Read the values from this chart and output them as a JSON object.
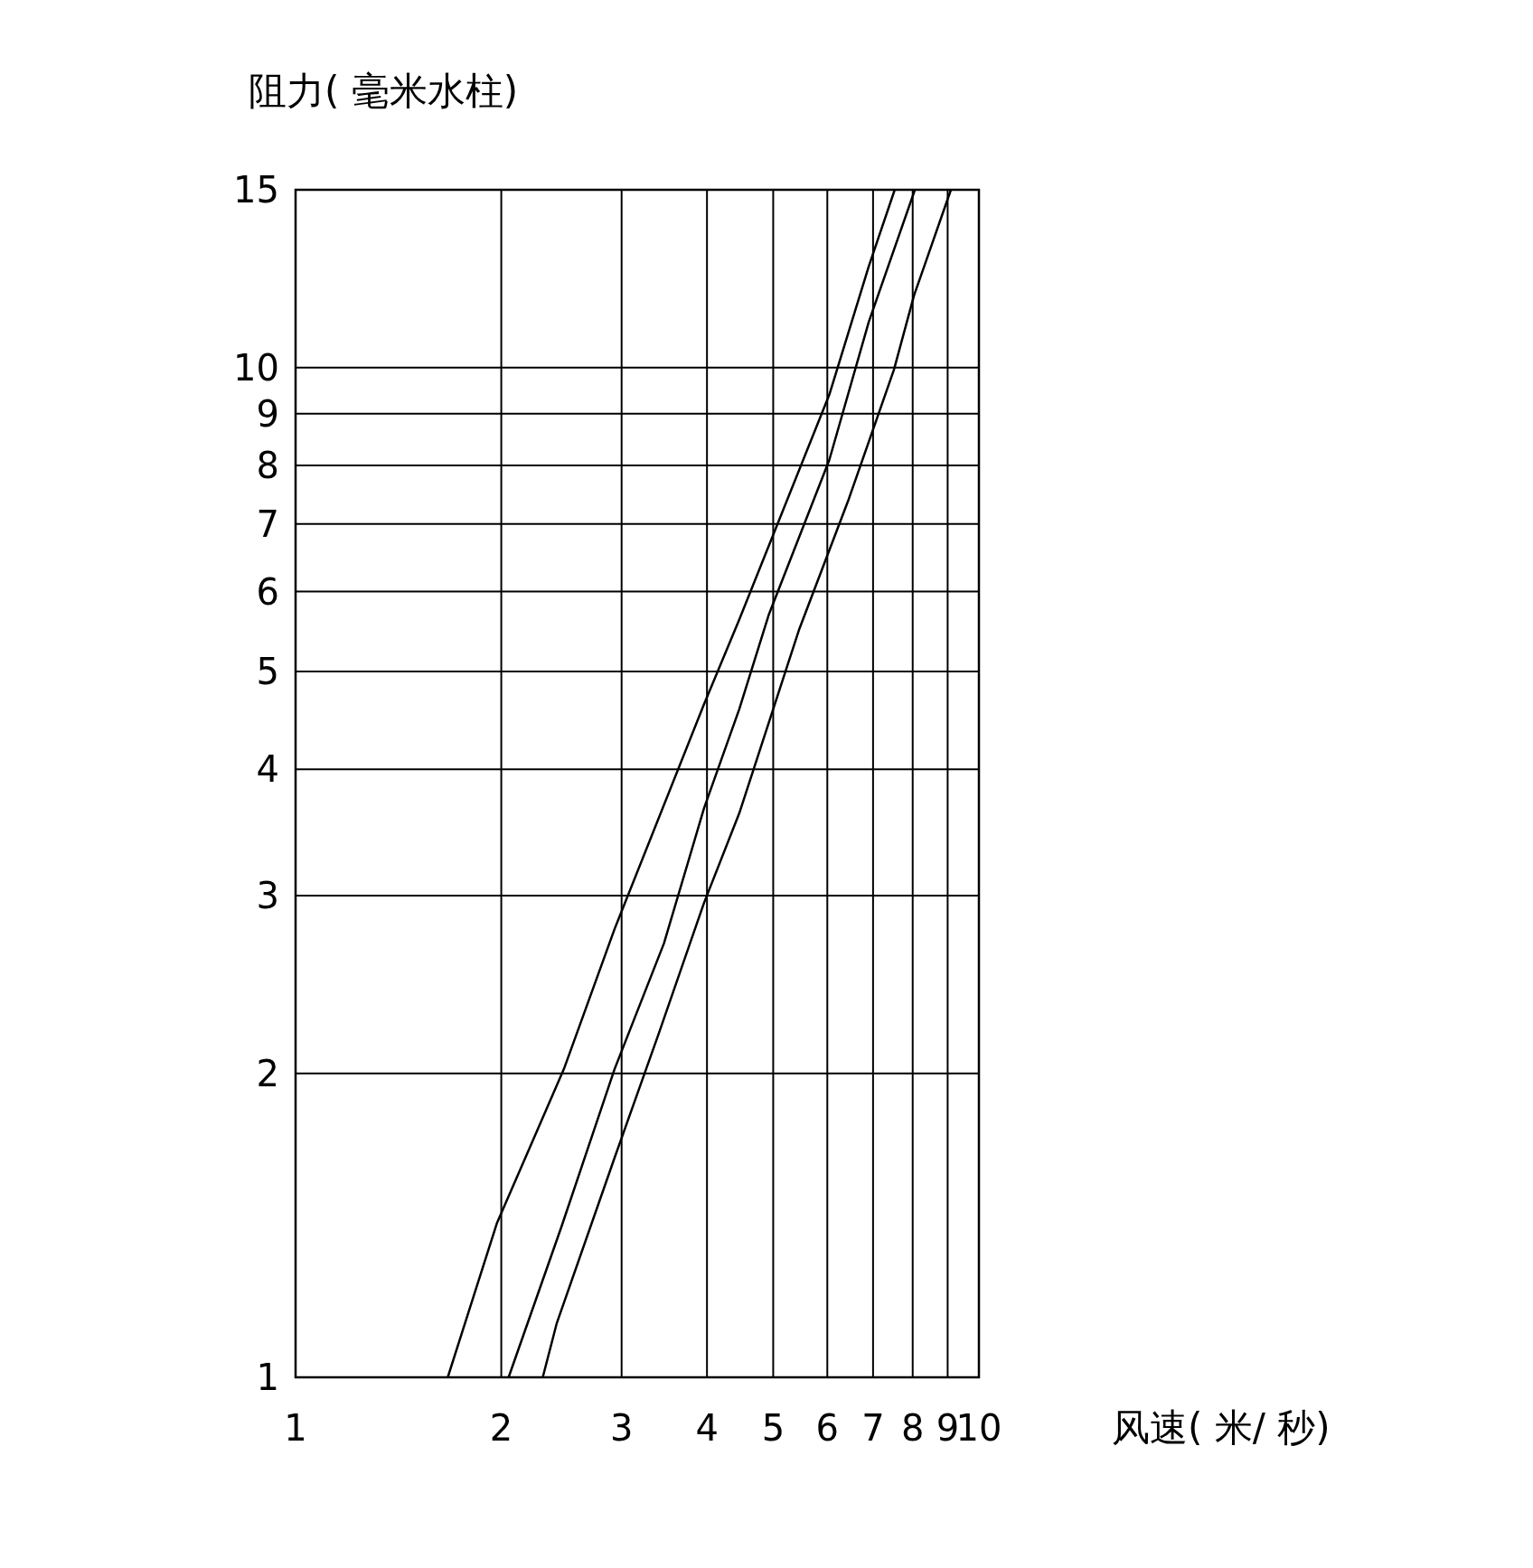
{
  "chart_data": {
    "type": "line",
    "xlabel": "风速( 米/ 秒)",
    "ylabel": "阻力( 毫米水柱)",
    "log": "xy",
    "grid": true,
    "xlim": [
      1,
      10
    ],
    "ylim": [
      1,
      15
    ],
    "xticks": [
      1,
      2,
      3,
      4,
      5,
      6,
      7,
      8,
      9,
      10
    ],
    "yticks": [
      1,
      2,
      3,
      4,
      5,
      6,
      7,
      8,
      9,
      10,
      15
    ],
    "series": [
      {
        "color": "#000000",
        "x": [
          1.67,
          1.97,
          2.47,
          2.93,
          3.96,
          4.46,
          6.04,
          6.9,
          7.53
        ],
        "values": [
          1,
          1.42,
          2.02,
          2.78,
          4.64,
          5.63,
          9.4,
          12.6,
          15
        ]
      },
      {
        "color": "#000000",
        "x": [
          2.05,
          2.45,
          2.93,
          3.46,
          3.96,
          4.46,
          4.93,
          6.04,
          6.9,
          8.06
        ],
        "values": [
          1,
          1.41,
          2.02,
          2.69,
          3.66,
          4.59,
          5.7,
          8.1,
          11.1,
          15
        ]
      },
      {
        "color": "#000000",
        "x": [
          2.3,
          2.41,
          2.93,
          3.4,
          3.96,
          4.46,
          5.46,
          6.45,
          7.51,
          8.04,
          9.1
        ],
        "values": [
          1,
          1.13,
          1.65,
          2.19,
          2.95,
          3.62,
          5.51,
          7.41,
          9.95,
          11.8,
          15
        ]
      }
    ]
  }
}
